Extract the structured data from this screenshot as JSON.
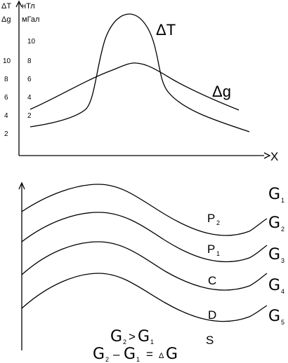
{
  "top_chart": {
    "y_axis_label_1": "ΔT",
    "y_axis_label_2": "Δg",
    "unit_1": "нТл",
    "unit_2": "мГал",
    "x_label": "X",
    "series_T_label": "ΔT",
    "series_g_label": "Δg",
    "ticks_outer": [
      "10",
      "8",
      "6",
      "4",
      "2"
    ],
    "ticks_inner": [
      "10",
      "8",
      "6",
      "4",
      "2"
    ]
  },
  "bottom_section": {
    "layers": [
      {
        "label": "P",
        "sub": "2"
      },
      {
        "label": "P",
        "sub": "1"
      },
      {
        "label": "C",
        "sub": ""
      },
      {
        "label": "D",
        "sub": ""
      },
      {
        "label": "S",
        "sub": ""
      }
    ],
    "sigmas": [
      {
        "symbol": "G",
        "sub": "1"
      },
      {
        "symbol": "G",
        "sub": "2"
      },
      {
        "symbol": "G",
        "sub": "3"
      },
      {
        "symbol": "G",
        "sub": "4"
      },
      {
        "symbol": "G",
        "sub": "5"
      }
    ],
    "formula_1": {
      "a": "G",
      "a_sub": "2",
      "op": ">",
      "b": "G",
      "b_sub": "1"
    },
    "formula_2": {
      "a": "G",
      "a_sub": "2",
      "op": "–",
      "b": "G",
      "b_sub": "1",
      "eq": "=",
      "c_prefix": "Δ",
      "c": "G"
    }
  }
}
